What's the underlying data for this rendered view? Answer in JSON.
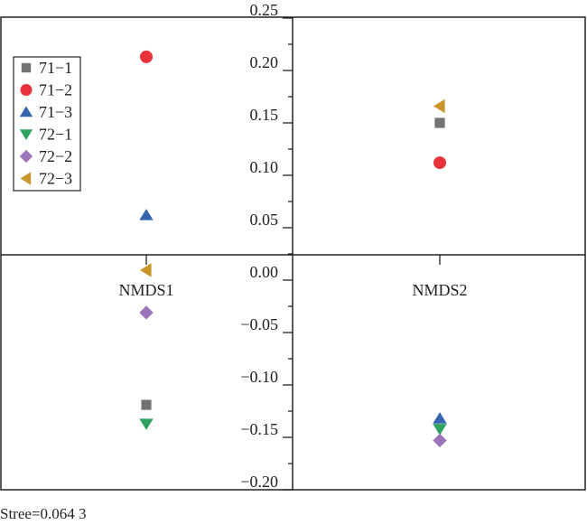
{
  "chart_data": {
    "type": "scatter",
    "title": "",
    "categories": [
      "NMDS1",
      "NMDS2"
    ],
    "ylim": [
      -0.2,
      0.25
    ],
    "yticks": [
      "0.25",
      "0.20",
      "0.15",
      "0.10",
      "0.05",
      "0.00",
      "−0.05",
      "−0.10",
      "−0.15",
      "−0.20"
    ],
    "ytick_values": [
      0.25,
      0.2,
      0.15,
      0.1,
      0.05,
      0.0,
      -0.05,
      -0.1,
      -0.15,
      -0.2
    ],
    "legend_position": "top-left",
    "series": [
      {
        "name": "71−1",
        "marker": "square",
        "color": "#737373",
        "values": [
          -0.119,
          0.15
        ]
      },
      {
        "name": "71−2",
        "marker": "circle",
        "color": "#e8333b",
        "values": [
          0.213,
          0.112
        ]
      },
      {
        "name": "71−3",
        "marker": "triangle-up",
        "color": "#3563ae",
        "values": [
          0.062,
          -0.132
        ]
      },
      {
        "name": "72−1",
        "marker": "triangle-down",
        "color": "#2fa260",
        "values": [
          -0.137,
          -0.142
        ]
      },
      {
        "name": "72−2",
        "marker": "diamond",
        "color": "#9b75b8",
        "values": [
          -0.031,
          -0.153
        ]
      },
      {
        "name": "72−3",
        "marker": "triangle-left",
        "color": "#c9952a",
        "values": [
          0.0095,
          0.166
        ]
      }
    ],
    "annotation": "Stree=0.064 3"
  }
}
